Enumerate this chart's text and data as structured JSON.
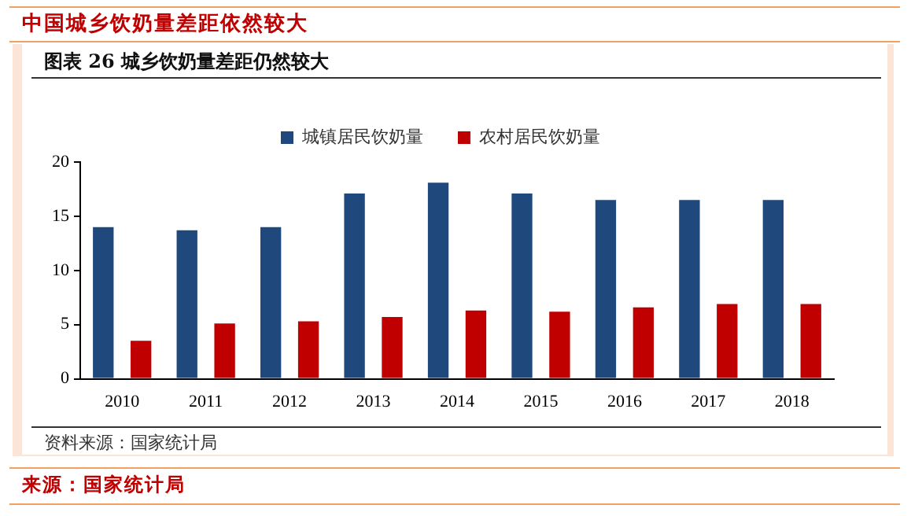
{
  "chart_data": {
    "type": "bar",
    "title": "中国城乡饮奶量差距依然较大",
    "subtitle": "图表 26   城乡饮奶量差距仍然较大",
    "categories": [
      "2010",
      "2011",
      "2012",
      "2013",
      "2014",
      "2015",
      "2016",
      "2017",
      "2018"
    ],
    "series": [
      {
        "name": "城镇居民饮奶量",
        "color": "#1f497d",
        "values": [
          14.0,
          13.7,
          14.0,
          17.1,
          18.1,
          17.1,
          16.5,
          16.5,
          16.5
        ]
      },
      {
        "name": "农村居民饮奶量",
        "color": "#c00000",
        "values": [
          3.5,
          5.1,
          5.3,
          5.7,
          6.3,
          6.2,
          6.6,
          6.9,
          6.9
        ]
      }
    ],
    "ylim": [
      0,
      20
    ],
    "yticks": [
      0,
      5,
      10,
      15,
      20
    ],
    "grid": false,
    "legend": "top",
    "annotations": [
      "资料来源：国家统计局",
      "来源：国家统计局"
    ]
  }
}
